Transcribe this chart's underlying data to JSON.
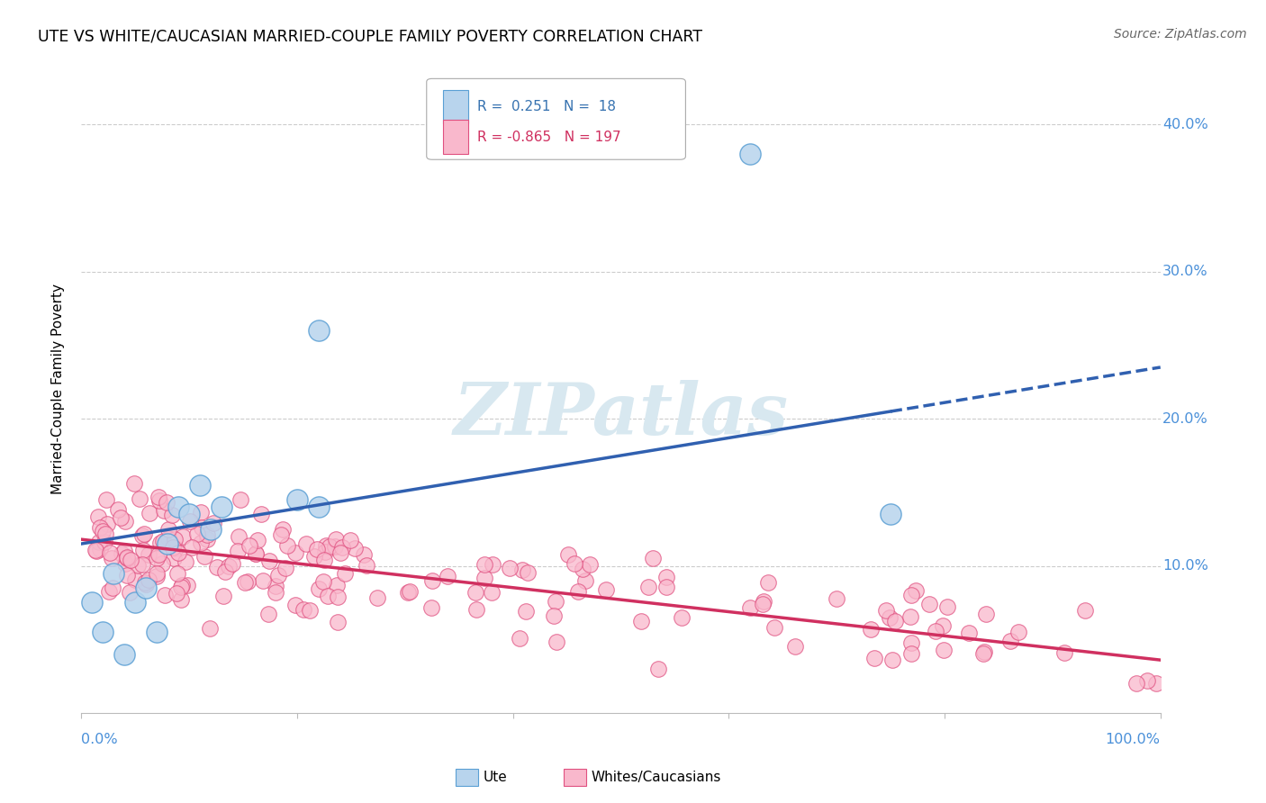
{
  "title": "UTE VS WHITE/CAUCASIAN MARRIED-COUPLE FAMILY POVERTY CORRELATION CHART",
  "source": "Source: ZipAtlas.com",
  "ylabel": "Married-Couple Family Poverty",
  "xlim": [
    0.0,
    1.0
  ],
  "ylim": [
    0.0,
    0.44
  ],
  "ytick_vals": [
    0.1,
    0.2,
    0.3,
    0.4
  ],
  "ytick_labels": [
    "10.0%",
    "20.0%",
    "30.0%",
    "40.0%"
  ],
  "ute_R": 0.251,
  "ute_N": 18,
  "white_R": -0.865,
  "white_N": 197,
  "ute_fill_color": "#b8d4ed",
  "ute_edge_color": "#5a9fd4",
  "white_fill_color": "#f9b8cc",
  "white_edge_color": "#e05080",
  "ute_line_color": "#3060b0",
  "white_line_color": "#d03060",
  "watermark_color": "#d8e8f0",
  "background_color": "#ffffff",
  "grid_color": "#cccccc",
  "legend_label_ute": "Ute",
  "legend_label_white": "Whites/Caucasians",
  "ute_line_x0": 0.0,
  "ute_line_y0": 0.115,
  "ute_line_x1": 0.75,
  "ute_line_y1": 0.205,
  "ute_line_dash_x0": 0.75,
  "ute_line_dash_y0": 0.205,
  "ute_line_dash_x1": 1.0,
  "ute_line_dash_y1": 0.235,
  "white_line_x0": 0.0,
  "white_line_y0": 0.118,
  "white_line_x1": 1.0,
  "white_line_y1": 0.036,
  "ute_pts_x": [
    0.01,
    0.02,
    0.03,
    0.04,
    0.05,
    0.06,
    0.07,
    0.08,
    0.09,
    0.1,
    0.11,
    0.12,
    0.13,
    0.2,
    0.22,
    0.22,
    0.62,
    0.75
  ],
  "ute_pts_y": [
    0.075,
    0.055,
    0.095,
    0.04,
    0.075,
    0.085,
    0.055,
    0.115,
    0.14,
    0.135,
    0.155,
    0.125,
    0.14,
    0.145,
    0.14,
    0.26,
    0.38,
    0.135
  ]
}
